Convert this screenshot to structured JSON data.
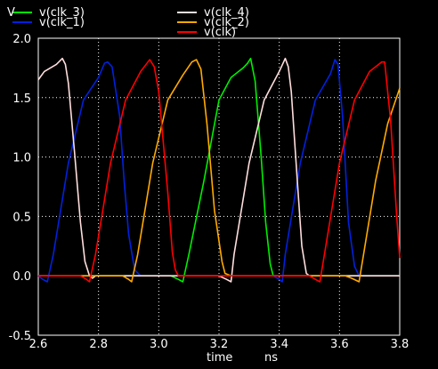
{
  "chart_data": {
    "type": "line",
    "title": "",
    "xlabel": "time",
    "xunit": "ns",
    "ylabel": "V",
    "xlim": [
      2.6,
      3.8
    ],
    "ylim": [
      -0.5,
      2.0
    ],
    "xticks": [
      "2.6",
      "2.8",
      "3.0",
      "3.2",
      "3.4",
      "3.6",
      "3.8"
    ],
    "yticks": [
      "-0.5",
      "0.0",
      "0.5",
      "1.0",
      "1.5",
      "2.0"
    ],
    "grid": true,
    "legend_position": "top",
    "series": [
      {
        "name": "v(clk_3)",
        "color": "#00ee00",
        "x": [
          2.6,
          3.0,
          3.04,
          3.065,
          3.08,
          3.1,
          3.15,
          3.2,
          3.24,
          3.28,
          3.295,
          3.305,
          3.32,
          3.34,
          3.355,
          3.37,
          3.38,
          3.4,
          3.8
        ],
        "y": [
          0.0,
          0.0,
          0.0,
          -0.03,
          -0.05,
          0.18,
          0.8,
          1.48,
          1.67,
          1.75,
          1.79,
          1.83,
          1.64,
          1.0,
          0.45,
          0.1,
          0.0,
          0.0,
          0.0
        ]
      },
      {
        "name": "v(clk_1)",
        "color": "#0022dd",
        "x": [
          2.6,
          2.615,
          2.63,
          2.65,
          2.7,
          2.75,
          2.8,
          2.82,
          2.83,
          2.845,
          2.87,
          2.885,
          2.9,
          2.92,
          2.94,
          3.0,
          3.38,
          3.4,
          3.41,
          3.42,
          3.47,
          3.52,
          3.57,
          3.585,
          3.595,
          3.61,
          3.63,
          3.65,
          3.665,
          3.68,
          3.8
        ],
        "y": [
          0.0,
          -0.03,
          -0.05,
          0.18,
          0.95,
          1.48,
          1.67,
          1.79,
          1.8,
          1.76,
          1.35,
          0.8,
          0.35,
          0.05,
          0.0,
          0.0,
          0.0,
          -0.03,
          -0.05,
          0.18,
          0.95,
          1.48,
          1.7,
          1.82,
          1.78,
          1.35,
          0.45,
          0.08,
          0.0,
          0.0,
          0.0
        ]
      },
      {
        "name": "v(clk_4)",
        "color": "#ffdddd",
        "x": [
          2.6,
          2.62,
          2.66,
          2.68,
          2.69,
          2.7,
          2.72,
          2.74,
          2.755,
          2.77,
          2.78,
          2.79,
          3.2,
          3.225,
          3.24,
          3.25,
          3.3,
          3.35,
          3.4,
          3.42,
          3.43,
          3.44,
          3.46,
          3.475,
          3.49,
          3.5,
          3.8
        ],
        "y": [
          1.65,
          1.72,
          1.78,
          1.83,
          1.78,
          1.62,
          1.05,
          0.45,
          0.12,
          0.0,
          -0.02,
          0.0,
          0.0,
          -0.03,
          -0.05,
          0.18,
          0.95,
          1.48,
          1.72,
          1.83,
          1.76,
          1.55,
          0.8,
          0.25,
          0.02,
          0.0,
          0.0
        ]
      },
      {
        "name": "v(clk_2)",
        "color": "#ffaa00",
        "x": [
          2.6,
          2.88,
          2.9,
          2.91,
          2.93,
          2.98,
          3.03,
          3.08,
          3.11,
          3.125,
          3.14,
          3.16,
          3.185,
          3.21,
          3.22,
          3.24,
          3.62,
          3.64,
          3.665,
          3.68,
          3.72,
          3.76,
          3.8
        ],
        "y": [
          0.0,
          0.0,
          -0.03,
          -0.05,
          0.18,
          0.95,
          1.48,
          1.69,
          1.8,
          1.82,
          1.74,
          1.28,
          0.55,
          0.12,
          0.02,
          0.0,
          0.0,
          -0.02,
          -0.05,
          0.18,
          0.8,
          1.28,
          1.58
        ]
      },
      {
        "name": "v(clk)",
        "color": "#ff0000",
        "x": [
          2.6,
          2.74,
          2.76,
          2.77,
          2.79,
          2.84,
          2.89,
          2.94,
          2.97,
          2.985,
          3.0,
          3.03,
          3.045,
          3.055,
          3.065,
          3.08,
          3.5,
          3.52,
          3.535,
          3.55,
          3.6,
          3.65,
          3.7,
          3.74,
          3.75,
          3.77,
          3.79,
          3.8
        ],
        "y": [
          0.0,
          0.0,
          -0.03,
          -0.05,
          0.18,
          0.95,
          1.48,
          1.72,
          1.82,
          1.76,
          1.55,
          0.7,
          0.2,
          0.05,
          0.0,
          0.0,
          0.0,
          -0.03,
          -0.05,
          0.18,
          0.95,
          1.48,
          1.72,
          1.8,
          1.8,
          1.3,
          0.5,
          0.15
        ]
      }
    ]
  }
}
